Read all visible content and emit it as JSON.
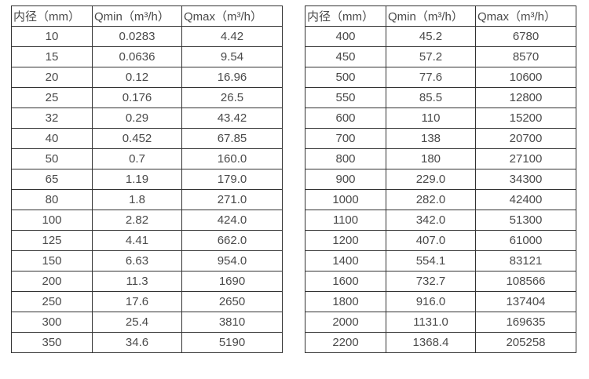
{
  "colors": {
    "background": "#ffffff",
    "border": "#333333",
    "text": "#4a4a4a"
  },
  "chart_data": [
    {
      "type": "table",
      "name": "flow-range-table-small-diameters",
      "columns": [
        "内径（mm）",
        "Qmin（m³/h）",
        "Qmax（m³/h）"
      ],
      "rows": [
        [
          "10",
          "0.0283",
          "4.42"
        ],
        [
          "15",
          "0.0636",
          "9.54"
        ],
        [
          "20",
          "0.12",
          "16.96"
        ],
        [
          "25",
          "0.176",
          "26.5"
        ],
        [
          "32",
          "0.29",
          "43.42"
        ],
        [
          "40",
          "0.452",
          "67.85"
        ],
        [
          "50",
          "0.7",
          "160.0"
        ],
        [
          "65",
          "1.19",
          "179.0"
        ],
        [
          "80",
          "1.8",
          "271.0"
        ],
        [
          "100",
          "2.82",
          "424.0"
        ],
        [
          "125",
          "4.41",
          "662.0"
        ],
        [
          "150",
          "6.63",
          "954.0"
        ],
        [
          "200",
          "11.3",
          "1690"
        ],
        [
          "250",
          "17.6",
          "2650"
        ],
        [
          "300",
          "25.4",
          "3810"
        ],
        [
          "350",
          "34.6",
          "5190"
        ]
      ]
    },
    {
      "type": "table",
      "name": "flow-range-table-large-diameters",
      "columns": [
        "内径（mm）",
        "Qmin（m³/h）",
        "Qmax（m³/h）"
      ],
      "rows": [
        [
          "400",
          "45.2",
          "6780"
        ],
        [
          "450",
          "57.2",
          "8570"
        ],
        [
          "500",
          "77.6",
          "10600"
        ],
        [
          "550",
          "85.5",
          "12800"
        ],
        [
          "600",
          "110",
          "15200"
        ],
        [
          "700",
          "138",
          "20700"
        ],
        [
          "800",
          "180",
          "27100"
        ],
        [
          "900",
          "229.0",
          "34300"
        ],
        [
          "1000",
          "282.0",
          "42400"
        ],
        [
          "1100",
          "342.0",
          "51300"
        ],
        [
          "1200",
          "407.0",
          "61000"
        ],
        [
          "1400",
          "554.1",
          "83121"
        ],
        [
          "1600",
          "732.7",
          "108566"
        ],
        [
          "1800",
          "916.0",
          "137404"
        ],
        [
          "2000",
          "1131.0",
          "169635"
        ],
        [
          "2200",
          "1368.4",
          "205258"
        ]
      ]
    }
  ]
}
